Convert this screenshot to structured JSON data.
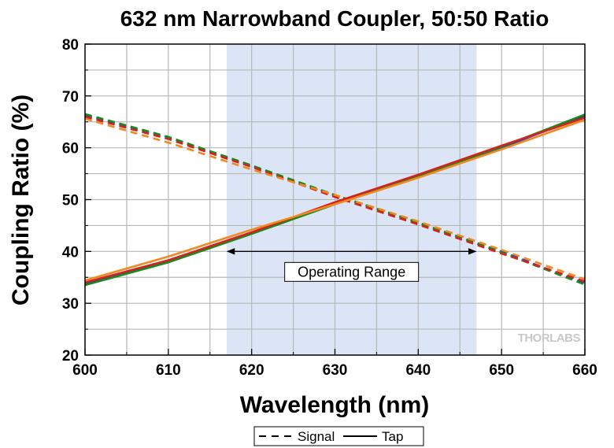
{
  "chart_data": {
    "type": "line",
    "title": "632 nm Narrowband Coupler, 50:50 Ratio",
    "xlabel": "Wavelength (nm)",
    "ylabel": "Coupling Ratio (%)",
    "xlim": [
      600,
      660
    ],
    "ylim": [
      20,
      80
    ],
    "xticks": [
      600,
      610,
      620,
      630,
      640,
      650,
      660
    ],
    "yticks": [
      20,
      30,
      40,
      50,
      60,
      70,
      80
    ],
    "grid": true,
    "highlight_region": {
      "x_start": 617,
      "x_end": 647,
      "color": "#dbe5f5"
    },
    "annotation": {
      "text": "Operating Range",
      "x_start": 617,
      "x_end": 647,
      "y": 40
    },
    "watermark": "THORLABS",
    "legend": {
      "placement": "bottom",
      "entries": [
        {
          "label": "Signal",
          "style": "dashed"
        },
        {
          "label": "Tap",
          "style": "solid"
        }
      ]
    },
    "series": [
      {
        "style": "dashed",
        "color": "#1f3fc8",
        "x": [
          600,
          610,
          620,
          630,
          640,
          650,
          660
        ],
        "y": [
          66.3,
          62.0,
          56.5,
          50.8,
          45.5,
          40.0,
          33.8
        ]
      },
      {
        "style": "dashed",
        "color": "#1a8a1a",
        "x": [
          600,
          610,
          620,
          630,
          640,
          650,
          660
        ],
        "y": [
          66.5,
          62.1,
          56.6,
          50.9,
          45.6,
          39.8,
          33.6
        ]
      },
      {
        "style": "dashed",
        "color": "#d82020",
        "x": [
          600,
          610,
          620,
          630,
          640,
          650,
          660
        ],
        "y": [
          66.0,
          61.7,
          56.3,
          50.5,
          45.2,
          39.6,
          34.2
        ]
      },
      {
        "style": "dashed",
        "color": "#f08a20",
        "x": [
          600,
          610,
          620,
          630,
          640,
          650,
          660
        ],
        "y": [
          65.6,
          61.0,
          55.8,
          50.9,
          45.8,
          40.3,
          34.6
        ]
      },
      {
        "style": "solid",
        "color": "#1f3fc8",
        "x": [
          600,
          610,
          620,
          630,
          640,
          650,
          660
        ],
        "y": [
          33.7,
          38.0,
          43.5,
          49.2,
          54.5,
          60.0,
          66.2
        ]
      },
      {
        "style": "solid",
        "color": "#1a8a1a",
        "x": [
          600,
          610,
          620,
          630,
          640,
          650,
          660
        ],
        "y": [
          33.5,
          37.9,
          43.4,
          49.1,
          54.4,
          60.2,
          66.4
        ]
      },
      {
        "style": "solid",
        "color": "#d82020",
        "x": [
          600,
          610,
          620,
          630,
          640,
          650,
          660
        ],
        "y": [
          34.0,
          38.3,
          43.7,
          49.5,
          54.8,
          60.4,
          65.8
        ]
      },
      {
        "style": "solid",
        "color": "#f08a20",
        "x": [
          600,
          610,
          620,
          630,
          640,
          650,
          660
        ],
        "y": [
          34.4,
          39.0,
          44.2,
          49.1,
          54.2,
          59.7,
          65.4
        ]
      }
    ]
  }
}
